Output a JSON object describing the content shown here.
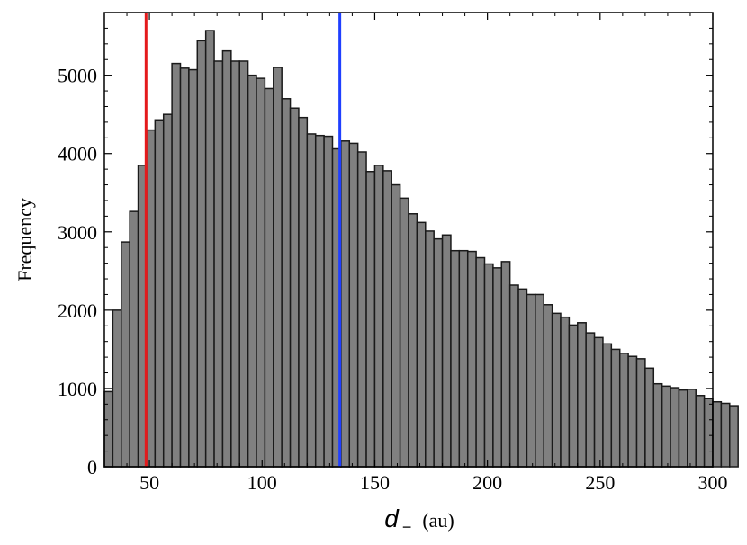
{
  "chart_data": {
    "type": "bar",
    "title": "",
    "xlabel": {
      "symbol": "d",
      "subscript": "−",
      "unit": "(au)"
    },
    "ylabel": "Frequency",
    "xlim": [
      30,
      300
    ],
    "ylim": [
      0,
      5800
    ],
    "xticks": [
      50,
      100,
      150,
      200,
      250,
      300
    ],
    "yticks": [
      0,
      1000,
      2000,
      3000,
      4000,
      5000
    ],
    "grid": false,
    "bin_start": 30,
    "bin_width": 3.75,
    "values": [
      960,
      2000,
      2870,
      3260,
      3850,
      4300,
      4430,
      4500,
      5150,
      5090,
      5070,
      5440,
      5570,
      5180,
      5310,
      5180,
      5180,
      5000,
      4960,
      4830,
      5100,
      4700,
      4580,
      4460,
      4250,
      4230,
      4220,
      4060,
      4160,
      4130,
      4020,
      3770,
      3850,
      3780,
      3600,
      3430,
      3230,
      3120,
      3010,
      2910,
      2960,
      2760,
      2760,
      2750,
      2670,
      2590,
      2540,
      2620,
      2320,
      2270,
      2200,
      2200,
      2070,
      1960,
      1910,
      1810,
      1840,
      1710,
      1650,
      1570,
      1500,
      1450,
      1410,
      1380,
      1260,
      1060,
      1030,
      1010,
      980,
      990,
      910,
      870,
      830,
      810,
      780
    ],
    "bar_color": "#808080",
    "bar_edge_color": "#1a1a1a",
    "vlines": [
      {
        "x": 48.5,
        "color": "#e41a1c"
      },
      {
        "x": 134.5,
        "color": "#1f3fff"
      }
    ]
  }
}
